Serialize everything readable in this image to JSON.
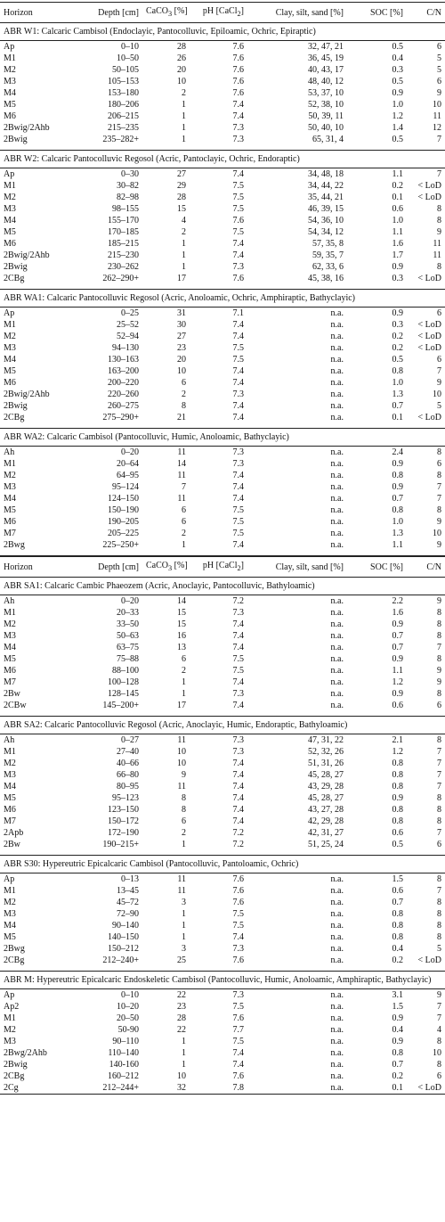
{
  "header": {
    "horizon": "Horizon",
    "depth": "Depth [cm]",
    "caco3_main": "CaCO",
    "caco3_sub": "3",
    "caco3_unit": " [%]",
    "ph_main": "pH [CaCl",
    "ph_sub": "2",
    "ph_close": "]",
    "texture": "Clay, silt, sand [%]",
    "soc": "SOC [%]",
    "cn": "C/N"
  },
  "blocks": [
    {
      "sections": [
        {
          "title": "ABR W1: Calcaric Cambisol (Endoclayic, Pantocolluvic, Epiloamic, Ochric, Epiraptic)",
          "rows": [
            [
              "Ap",
              "0–10",
              "28",
              "7.6",
              "32, 47, 21",
              "0.5",
              "6"
            ],
            [
              "M1",
              "10–50",
              "26",
              "7.6",
              "36, 45, 19",
              "0.4",
              "5"
            ],
            [
              "M2",
              "50–105",
              "20",
              "7.6",
              "40, 43, 17",
              "0.3",
              "5"
            ],
            [
              "M3",
              "105–153",
              "10",
              "7.6",
              "48, 40, 12",
              "0.5",
              "6"
            ],
            [
              "M4",
              "153–180",
              "2",
              "7.6",
              "53, 37, 10",
              "0.9",
              "9"
            ],
            [
              "M5",
              "180–206",
              "1",
              "7.4",
              "52, 38, 10",
              "1.0",
              "10"
            ],
            [
              "M6",
              "206–215",
              "1",
              "7.4",
              "50, 39, 11",
              "1.2",
              "11"
            ],
            [
              "2Bwig/2Ahb",
              "215–235",
              "1",
              "7.3",
              "50, 40, 10",
              "1.4",
              "12"
            ],
            [
              "2Bwig",
              "235–282+",
              "1",
              "7.3",
              "65, 31, 4",
              "0.5",
              "7"
            ]
          ]
        },
        {
          "title": "ABR W2: Calcaric Pantocolluvic Regosol (Acric, Pantoclayic, Ochric, Endoraptic)",
          "rows": [
            [
              "Ap",
              "0–30",
              "27",
              "7.4",
              "34, 48, 18",
              "1.1",
              "7"
            ],
            [
              "M1",
              "30–82",
              "29",
              "7.5",
              "34, 44, 22",
              "0.2",
              "< LoD"
            ],
            [
              "M2",
              "82–98",
              "28",
              "7.5",
              "35, 44, 21",
              "0.1",
              "< LoD"
            ],
            [
              "M3",
              "98–155",
              "15",
              "7.5",
              "46, 39, 15",
              "0.6",
              "8"
            ],
            [
              "M4",
              "155–170",
              "4",
              "7.6",
              "54, 36, 10",
              "1.0",
              "8"
            ],
            [
              "M5",
              "170–185",
              "2",
              "7.5",
              "54, 34, 12",
              "1.1",
              "9"
            ],
            [
              "M6",
              "185–215",
              "1",
              "7.4",
              "57, 35, 8",
              "1.6",
              "11"
            ],
            [
              "2Bwig/2Ahb",
              "215–230",
              "1",
              "7.4",
              "59, 35, 7",
              "1.7",
              "11"
            ],
            [
              "2Bwig",
              "230–262",
              "1",
              "7.3",
              "62, 33, 6",
              "0.9",
              "8"
            ],
            [
              "2CBg",
              "262–290+",
              "17",
              "7.6",
              "45, 38, 16",
              "0.3",
              "< LoD"
            ]
          ]
        },
        {
          "title": "ABR WA1: Calcaric Pantocolluvic Regosol (Acric, Anoloamic, Ochric, Amphiraptic, Bathyclayic)",
          "rows": [
            [
              "Ap",
              "0–25",
              "31",
              "7.1",
              "n.a.",
              "0.9",
              "6"
            ],
            [
              "M1",
              "25–52",
              "30",
              "7.4",
              "n.a.",
              "0.3",
              "< LoD"
            ],
            [
              "M2",
              "52–94",
              "27",
              "7.4",
              "n.a.",
              "0.2",
              "< LoD"
            ],
            [
              "M3",
              "94–130",
              "23",
              "7.5",
              "n.a.",
              "0.2",
              "< LoD"
            ],
            [
              "M4",
              "130–163",
              "20",
              "7.5",
              "n.a.",
              "0.5",
              "6"
            ],
            [
              "M5",
              "163–200",
              "10",
              "7.4",
              "n.a.",
              "0.8",
              "7"
            ],
            [
              "M6",
              "200–220",
              "6",
              "7.4",
              "n.a.",
              "1.0",
              "9"
            ],
            [
              "2Bwig/2Ahb",
              "220–260",
              "2",
              "7.3",
              "n.a.",
              "1.3",
              "10"
            ],
            [
              "2Bwig",
              "260–275",
              "8",
              "7.4",
              "n.a.",
              "0.7",
              "5"
            ],
            [
              "2CBg",
              "275–290+",
              "21",
              "7.4",
              "n.a.",
              "0.1",
              "< LoD"
            ]
          ]
        },
        {
          "title": "ABR WA2: Calcaric Cambisol (Pantocolluvic, Humic, Anoloamic, Bathyclayic)",
          "rows": [
            [
              "Ah",
              "0–20",
              "11",
              "7.3",
              "n.a.",
              "2.4",
              "8"
            ],
            [
              "M1",
              "20–64",
              "14",
              "7.3",
              "n.a.",
              "0.9",
              "6"
            ],
            [
              "M2",
              "64–95",
              "11",
              "7.4",
              "n.a.",
              "0.8",
              "8"
            ],
            [
              "M3",
              "95–124",
              "7",
              "7.4",
              "n.a.",
              "0.9",
              "7"
            ],
            [
              "M4",
              "124–150",
              "11",
              "7.4",
              "n.a.",
              "0.7",
              "7"
            ],
            [
              "M5",
              "150–190",
              "6",
              "7.5",
              "n.a.",
              "0.8",
              "8"
            ],
            [
              "M6",
              "190–205",
              "6",
              "7.5",
              "n.a.",
              "1.0",
              "9"
            ],
            [
              "M7",
              "205–225",
              "2",
              "7.5",
              "n.a.",
              "1.3",
              "10"
            ],
            [
              "2Bwg",
              "225–250+",
              "1",
              "7.4",
              "n.a.",
              "1.1",
              "9"
            ]
          ]
        }
      ]
    },
    {
      "sections": [
        {
          "title": "ABR SA1: Calcaric Cambic Phaeozem (Acric, Anoclayic, Pantocolluvic, Bathyloamic)",
          "rows": [
            [
              "Ah",
              "0–20",
              "14",
              "7.2",
              "n.a.",
              "2.2",
              "9"
            ],
            [
              "M1",
              "20–33",
              "15",
              "7.3",
              "n.a.",
              "1.6",
              "8"
            ],
            [
              "M2",
              "33–50",
              "15",
              "7.4",
              "n.a.",
              "0.9",
              "8"
            ],
            [
              "M3",
              "50–63",
              "16",
              "7.4",
              "n.a.",
              "0.7",
              "8"
            ],
            [
              "M4",
              "63–75",
              "13",
              "7.4",
              "n.a.",
              "0.7",
              "7"
            ],
            [
              "M5",
              "75–88",
              "6",
              "7.5",
              "n.a.",
              "0.9",
              "8"
            ],
            [
              "M6",
              "88–100",
              "2",
              "7.5",
              "n.a.",
              "1.1",
              "9"
            ],
            [
              "M7",
              "100–128",
              "1",
              "7.4",
              "n.a.",
              "1.2",
              "9"
            ],
            [
              "2Bw",
              "128–145",
              "1",
              "7.3",
              "n.a.",
              "0.9",
              "8"
            ],
            [
              "2CBw",
              "145–200+",
              "17",
              "7.4",
              "n.a.",
              "0.6",
              "6"
            ]
          ]
        },
        {
          "title": "ABR SA2: Calcaric Pantocolluvic Regosol (Acric, Anoclayic, Humic, Endoraptic, Bathyloamic)",
          "rows": [
            [
              "Ah",
              "0–27",
              "11",
              "7.3",
              "47, 31, 22",
              "2.1",
              "8"
            ],
            [
              "M1",
              "27–40",
              "10",
              "7.3",
              "52, 32, 26",
              "1.2",
              "7"
            ],
            [
              "M2",
              "40–66",
              "10",
              "7.4",
              "51, 31, 26",
              "0.8",
              "7"
            ],
            [
              "M3",
              "66–80",
              "9",
              "7.4",
              "45, 28, 27",
              "0.8",
              "7"
            ],
            [
              "M4",
              "80–95",
              "11",
              "7.4",
              "43, 29, 28",
              "0.8",
              "7"
            ],
            [
              "M5",
              "95–123",
              "8",
              "7.4",
              "45, 28, 27",
              "0.9",
              "8"
            ],
            [
              "M6",
              "123–150",
              "8",
              "7.4",
              "43, 27, 28",
              "0.8",
              "8"
            ],
            [
              "M7",
              "150–172",
              "6",
              "7.4",
              "42, 29, 28",
              "0.8",
              "8"
            ],
            [
              "2Apb",
              "172–190",
              "2",
              "7.2",
              "42, 31, 27",
              "0.6",
              "7"
            ],
            [
              "2Bw",
              "190–215+",
              "1",
              "7.2",
              "51, 25, 24",
              "0.5",
              "6"
            ]
          ]
        },
        {
          "title": "ABR S30: Hypereutric Epicalcaric Cambisol (Pantocolluvic, Pantoloamic, Ochric)",
          "rows": [
            [
              "Ap",
              "0–13",
              "11",
              "7.6",
              "n.a.",
              "1.5",
              "8"
            ],
            [
              "M1",
              "13–45",
              "11",
              "7.6",
              "n.a.",
              "0.6",
              "7"
            ],
            [
              "M2",
              "45–72",
              "3",
              "7.6",
              "n.a.",
              "0.7",
              "8"
            ],
            [
              "M3",
              "72–90",
              "1",
              "7.5",
              "n.a.",
              "0.8",
              "8"
            ],
            [
              "M4",
              "90–140",
              "1",
              "7.5",
              "n.a.",
              "0.8",
              "8"
            ],
            [
              "M5",
              "140–150",
              "1",
              "7.4",
              "n.a.",
              "0.8",
              "8"
            ],
            [
              "2Bwg",
              "150–212",
              "3",
              "7.3",
              "n.a.",
              "0.4",
              "5"
            ],
            [
              "2CBg",
              "212–240+",
              "25",
              "7.6",
              "n.a.",
              "0.2",
              "< LoD"
            ]
          ]
        },
        {
          "title": "ABR M: Hypereutric Epicalcaric Endoskeletic Cambisol (Pantocolluvic, Humic, Anoloamic, Amphiraptic, Bathyclayic)",
          "rows": [
            [
              "Ap",
              "0–10",
              "22",
              "7.3",
              "n.a.",
              "3.1",
              "9"
            ],
            [
              "Ap2",
              "10–20",
              "23",
              "7.5",
              "n.a.",
              "1.5",
              "7"
            ],
            [
              "M1",
              "20–50",
              "28",
              "7.6",
              "n.a.",
              "0.9",
              "7"
            ],
            [
              "M2",
              "50-90",
              "22",
              "7.7",
              "n.a.",
              "0.4",
              "4"
            ],
            [
              "M3",
              "90–110",
              "1",
              "7.5",
              "n.a.",
              "0.9",
              "8"
            ],
            [
              "2Bwg/2Ahb",
              "110–140",
              "1",
              "7.4",
              "n.a.",
              "0.8",
              "10"
            ],
            [
              "2Bwig",
              "140-160",
              "1",
              "7.4",
              "n.a.",
              "0.7",
              "8"
            ],
            [
              "2CBg",
              "160–212",
              "10",
              "7.6",
              "n.a.",
              "0.2",
              "6"
            ],
            [
              "2Cg",
              "212–244+",
              "32",
              "7.8",
              "n.a.",
              "0.1",
              "< LoD"
            ]
          ]
        }
      ]
    }
  ]
}
